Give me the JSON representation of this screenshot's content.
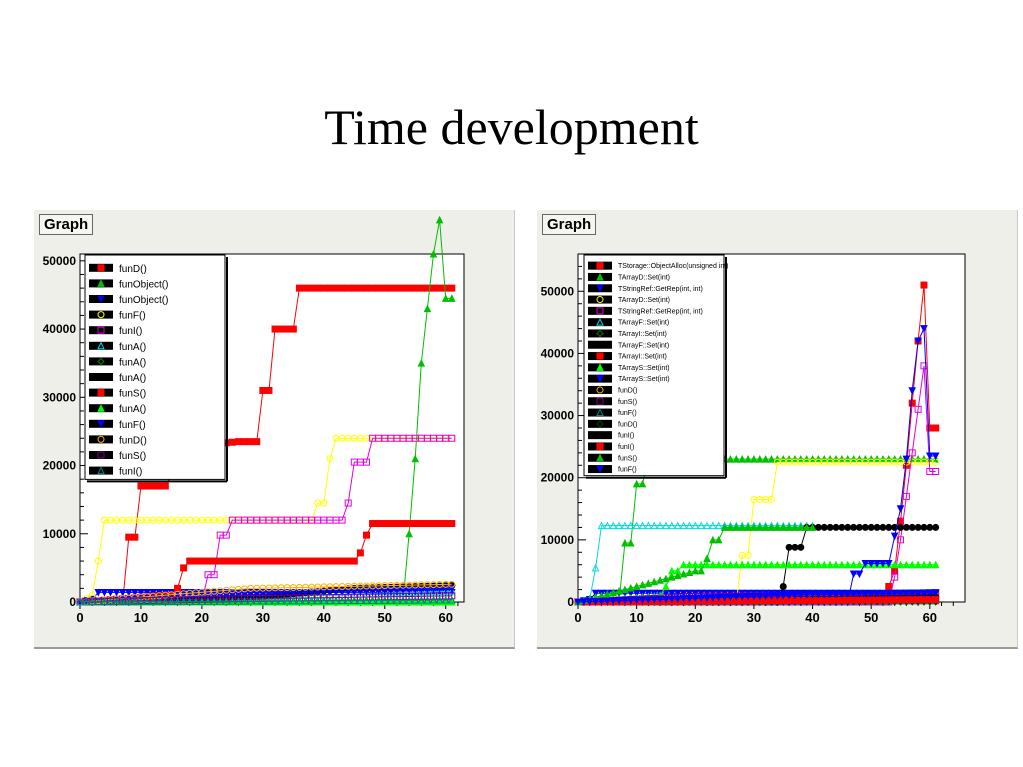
{
  "slide": {
    "title": "Time development"
  },
  "chart_data": [
    {
      "type": "line",
      "panel_label": "Graph",
      "xlim": [
        0,
        63
      ],
      "ylim": [
        0,
        51000
      ],
      "x_ticks": [
        0,
        10,
        20,
        30,
        40,
        50,
        60
      ],
      "y_ticks": [
        0,
        10000,
        20000,
        30000,
        40000,
        50000
      ],
      "legend_position": "top-left",
      "series": [
        {
          "name": "funD()",
          "color": "#ff0000",
          "marker": "square-filled",
          "points": [
            [
              0,
              0
            ],
            [
              7,
              0
            ],
            [
              8,
              9500
            ],
            [
              9,
              9500
            ],
            [
              10,
              17000
            ],
            [
              14,
              17000
            ],
            [
              16,
              20000
            ],
            [
              20,
              23000
            ],
            [
              26,
              23500
            ],
            [
              29,
              23500
            ],
            [
              30,
              31000
            ],
            [
              31,
              31000
            ],
            [
              32,
              40000
            ],
            [
              35,
              40000
            ],
            [
              36,
              46000
            ],
            [
              61,
              46000
            ]
          ]
        },
        {
          "name": "funObject()",
          "color": "#00c000",
          "marker": "triangle-filled",
          "points": [
            [
              0,
              0
            ],
            [
              53,
              0
            ],
            [
              54,
              10000
            ],
            [
              55,
              21000
            ],
            [
              56,
              35000
            ],
            [
              58,
              51000
            ],
            [
              59,
              56000
            ],
            [
              60,
              44500
            ],
            [
              61,
              44500
            ]
          ]
        },
        {
          "name": "funObject()",
          "color": "#0000ff",
          "marker": "triangle-down-filled",
          "points": [
            [
              0,
              0
            ],
            [
              2,
              400
            ],
            [
              3,
              1400
            ],
            [
              61,
              1400
            ]
          ]
        },
        {
          "name": "funF()",
          "color": "#ffff00",
          "marker": "circle-open",
          "points": [
            [
              0,
              0
            ],
            [
              2,
              1000
            ],
            [
              3,
              6000
            ],
            [
              4,
              12000
            ],
            [
              38,
              12000
            ],
            [
              39,
              14500
            ],
            [
              40,
              14500
            ],
            [
              41,
              21000
            ],
            [
              42,
              24000
            ],
            [
              61,
              24000
            ]
          ]
        },
        {
          "name": "funI()",
          "color": "#e000e0",
          "marker": "square-open",
          "points": [
            [
              0,
              0
            ],
            [
              20,
              0
            ],
            [
              21,
              4000
            ],
            [
              22,
              4000
            ],
            [
              23,
              9800
            ],
            [
              24,
              9800
            ],
            [
              25,
              12000
            ],
            [
              43,
              12000
            ],
            [
              44,
              14500
            ],
            [
              45,
              20500
            ],
            [
              47,
              20500
            ],
            [
              48,
              24000
            ],
            [
              61,
              24000
            ]
          ]
        },
        {
          "name": "funA()",
          "color": "#00d8e0",
          "marker": "triangle-open",
          "points": [
            [
              0,
              0
            ],
            [
              15,
              600
            ],
            [
              40,
              1000
            ],
            [
              61,
              1600
            ]
          ]
        },
        {
          "name": "funA()",
          "color": "#008000",
          "marker": "diamond-open",
          "points": [
            [
              0,
              0
            ],
            [
              61,
              0
            ]
          ]
        },
        {
          "name": "funA()",
          "color": "#000000",
          "marker": "circle-filled",
          "points": [
            [
              0,
              0
            ],
            [
              30,
              800
            ],
            [
              45,
              2000
            ],
            [
              61,
              2400
            ]
          ]
        },
        {
          "name": "funS()",
          "color": "#ff0000",
          "marker": "square-filled",
          "points": [
            [
              0,
              0
            ],
            [
              15,
              1000
            ],
            [
              16,
              2000
            ],
            [
              17,
              5000
            ],
            [
              18,
              6000
            ],
            [
              19,
              6000
            ],
            [
              20,
              6000
            ],
            [
              45,
              6000
            ],
            [
              46,
              7200
            ],
            [
              47,
              9800
            ],
            [
              48,
              11500
            ],
            [
              61,
              11500
            ]
          ]
        },
        {
          "name": "funA()",
          "color": "#00ff00",
          "marker": "triangle-filled",
          "points": [
            [
              0,
              0
            ],
            [
              61,
              0
            ]
          ]
        },
        {
          "name": "funF()",
          "color": "#0000ff",
          "marker": "triangle-down-filled",
          "points": [
            [
              0,
              0
            ],
            [
              10,
              500
            ],
            [
              40,
              1500
            ],
            [
              61,
              2000
            ]
          ]
        },
        {
          "name": "funD()",
          "color": "#ffb000",
          "marker": "circle-open",
          "points": [
            [
              0,
              0
            ],
            [
              28,
              2000
            ],
            [
              61,
              2600
            ]
          ]
        },
        {
          "name": "funS()",
          "color": "#800080",
          "marker": "square-open",
          "points": [
            [
              0,
              0
            ],
            [
              20,
              400
            ],
            [
              61,
              900
            ]
          ]
        },
        {
          "name": "funI()",
          "color": "#008080",
          "marker": "triangle-open",
          "points": [
            [
              0,
              0
            ],
            [
              61,
              300
            ]
          ]
        }
      ]
    },
    {
      "type": "line",
      "panel_label": "Graph",
      "xlim": [
        0,
        66
      ],
      "ylim": [
        0,
        56000
      ],
      "x_ticks": [
        0,
        10,
        20,
        30,
        40,
        50,
        60
      ],
      "y_ticks": [
        0,
        10000,
        20000,
        30000,
        40000,
        50000
      ],
      "legend_position": "top-left",
      "series": [
        {
          "name": "TStorage::ObjectAlloc(unsigned int)",
          "color": "#ff0000",
          "marker": "square-filled",
          "points": [
            [
              0,
              0
            ],
            [
              52,
              0
            ],
            [
              54,
              5000
            ],
            [
              55,
              13000
            ],
            [
              56,
              22000
            ],
            [
              57,
              32000
            ],
            [
              58,
              42000
            ],
            [
              59,
              51000
            ],
            [
              60,
              28000
            ],
            [
              61,
              28000
            ]
          ]
        },
        {
          "name": "TArrayD::Set(int)",
          "color": "#00c000",
          "marker": "triangle-filled",
          "points": [
            [
              0,
              0
            ],
            [
              7,
              0
            ],
            [
              8,
              9500
            ],
            [
              9,
              9500
            ],
            [
              10,
              19000
            ],
            [
              11,
              19000
            ],
            [
              12,
              23000
            ],
            [
              61,
              23000
            ]
          ]
        },
        {
          "name": "TStringRef::GetRep(int, int)",
          "color": "#0000ff",
          "marker": "triangle-down-filled",
          "points": [
            [
              0,
              0
            ],
            [
              2,
              400
            ],
            [
              3,
              1400
            ],
            [
              61,
              1400
            ]
          ]
        },
        {
          "name": "TArrayD::Set(int)",
          "color": "#ffff00",
          "marker": "circle-open",
          "points": [
            [
              0,
              0
            ],
            [
              27,
              0
            ],
            [
              28,
              7500
            ],
            [
              29,
              7500
            ],
            [
              30,
              16500
            ],
            [
              33,
              16500
            ],
            [
              34,
              22500
            ],
            [
              61,
              22500
            ]
          ]
        },
        {
          "name": "TStringRef::GetRep(int, int)",
          "color": "#e000e0",
          "marker": "square-open",
          "points": [
            [
              0,
              0
            ],
            [
              53,
              0
            ],
            [
              54,
              4000
            ],
            [
              55,
              10000
            ],
            [
              56,
              17000
            ],
            [
              57,
              24000
            ],
            [
              58,
              31000
            ],
            [
              59,
              38000
            ],
            [
              60,
              21000
            ],
            [
              61,
              21000
            ]
          ]
        },
        {
          "name": "TArrayF::Set(int)",
          "color": "#00d8e0",
          "marker": "triangle-open",
          "points": [
            [
              0,
              0
            ],
            [
              2,
              400
            ],
            [
              3,
              5500
            ],
            [
              4,
              12300
            ],
            [
              40,
              12300
            ]
          ]
        },
        {
          "name": "TArrayI::Set(int)",
          "color": "#008000",
          "marker": "diamond-open",
          "points": [
            [
              0,
              0
            ],
            [
              61,
              0
            ]
          ]
        },
        {
          "name": "TArrayF::Set(int)",
          "color": "#000000",
          "marker": "circle-filled",
          "points": [
            [
              0,
              0
            ],
            [
              34,
              0
            ],
            [
              35,
              2500
            ],
            [
              36,
              8800
            ],
            [
              38,
              8800
            ],
            [
              39,
              12000
            ],
            [
              61,
              12000
            ]
          ]
        },
        {
          "name": "TArrayI::Set(int)",
          "color": "#ff0000",
          "marker": "square-filled",
          "points": [
            [
              0,
              0
            ],
            [
              61,
              300
            ]
          ]
        },
        {
          "name": "TArrayS::Set(int)",
          "color": "#00ff00",
          "marker": "triangle-filled",
          "points": [
            [
              0,
              0
            ],
            [
              14,
              1000
            ],
            [
              15,
              2500
            ],
            [
              16,
              5000
            ],
            [
              17,
              5000
            ],
            [
              18,
              6000
            ],
            [
              61,
              6000
            ]
          ]
        },
        {
          "name": "TArrayS::Set(int)",
          "color": "#0000ff",
          "marker": "triangle-down-filled",
          "points": [
            [
              0,
              0
            ],
            [
              46,
              0
            ],
            [
              47,
              4500
            ],
            [
              48,
              4500
            ],
            [
              49,
              6200
            ],
            [
              53,
              6200
            ],
            [
              55,
              15000
            ],
            [
              56,
              23000
            ],
            [
              57,
              34000
            ],
            [
              58,
              42000
            ],
            [
              59,
              44000
            ],
            [
              60,
              23500
            ],
            [
              61,
              23500
            ]
          ]
        },
        {
          "name": "funD()",
          "color": "#ffb000",
          "marker": "circle-open",
          "points": [
            [
              0,
              0
            ],
            [
              61,
              600
            ]
          ]
        },
        {
          "name": "funS()",
          "color": "#800080",
          "marker": "square-open",
          "points": [
            [
              0,
              0
            ],
            [
              20,
              900
            ],
            [
              61,
              1300
            ]
          ]
        },
        {
          "name": "funF()",
          "color": "#008080",
          "marker": "triangle-open",
          "points": [
            [
              0,
              0
            ],
            [
              61,
              200
            ]
          ]
        },
        {
          "name": "funD()",
          "color": "#004000",
          "marker": "diamond-open",
          "points": [
            [
              0,
              0
            ],
            [
              61,
              100
            ]
          ]
        },
        {
          "name": "funI()",
          "color": "#000000",
          "marker": "circle-filled",
          "points": [
            [
              0,
              0
            ],
            [
              61,
              800
            ]
          ]
        },
        {
          "name": "funI()",
          "color": "#ff0000",
          "marker": "square-filled",
          "points": [
            [
              0,
              0
            ],
            [
              61,
              400
            ]
          ]
        },
        {
          "name": "funS()",
          "color": "#00c000",
          "marker": "triangle-filled",
          "points": [
            [
              0,
              0
            ],
            [
              20,
              5000
            ],
            [
              21,
              5000
            ],
            [
              22,
              7000
            ],
            [
              23,
              10000
            ],
            [
              24,
              10000
            ],
            [
              25,
              12000
            ],
            [
              40,
              12000
            ]
          ]
        },
        {
          "name": "funF()",
          "color": "#0000ff",
          "marker": "triangle-down-filled",
          "points": [
            [
              0,
              0
            ],
            [
              40,
              1200
            ],
            [
              61,
              1500
            ]
          ]
        }
      ]
    }
  ]
}
